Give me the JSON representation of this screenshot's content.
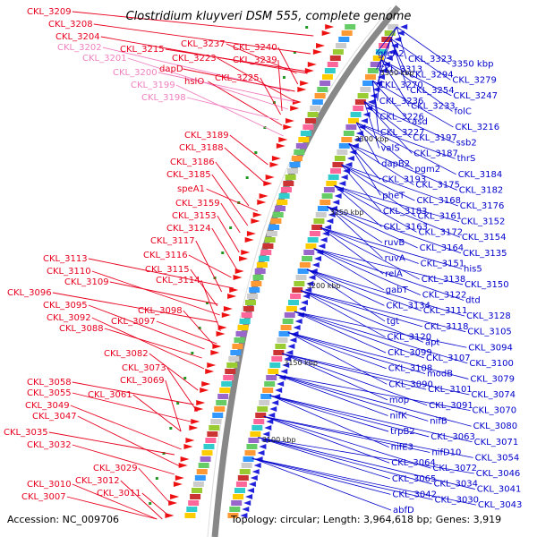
{
  "title": "Clostridium kluyveri DSM 555, complete genome",
  "footer": {
    "accession": "Accession: NC_009706",
    "topology": "Topology: circular; Length: 3,964,618 bp; Genes: 3,919"
  },
  "kbp_labels": [
    "3350 kbp",
    "3300 kbp",
    "3250 kbp",
    "3200 kbp",
    "3150 kbp",
    "3100 kbp"
  ],
  "colors": {
    "forward_label": "#e8001e",
    "forward_rna_label": "#f080c0",
    "reverse_label": "#0000cc",
    "backbone": "#888888"
  },
  "left_labels": [
    {
      "text": "CKL_3209",
      "color": "red"
    },
    {
      "text": "CKL_3208",
      "color": "red"
    },
    {
      "text": "CKL_3204",
      "color": "red"
    },
    {
      "text": "CKL_3202",
      "color": "pink"
    },
    {
      "text": "CKL_3201",
      "color": "pink"
    },
    {
      "text": "CKL_3215",
      "color": "red"
    },
    {
      "text": "CKL_3237",
      "color": "red"
    },
    {
      "text": "CKL_3240",
      "color": "red"
    },
    {
      "text": "CKL_3223",
      "color": "red"
    },
    {
      "text": "CKL_3239",
      "color": "red"
    },
    {
      "text": "dapD",
      "color": "red"
    },
    {
      "text": "CKL_3200",
      "color": "pink"
    },
    {
      "text": "CKL_3225",
      "color": "red"
    },
    {
      "text": "hslO",
      "color": "red"
    },
    {
      "text": "CKL_3199",
      "color": "pink"
    },
    {
      "text": "CKL_3198",
      "color": "pink"
    },
    {
      "text": "CKL_3189",
      "color": "red"
    },
    {
      "text": "CKL_3188",
      "color": "red"
    },
    {
      "text": "CKL_3186",
      "color": "red"
    },
    {
      "text": "CKL_3185",
      "color": "red"
    },
    {
      "text": "speA1",
      "color": "red"
    },
    {
      "text": "CKL_3159",
      "color": "red"
    },
    {
      "text": "CKL_3153",
      "color": "red"
    },
    {
      "text": "CKL_3124",
      "color": "red"
    },
    {
      "text": "CKL_3117",
      "color": "red"
    },
    {
      "text": "CKL_3116",
      "color": "red"
    },
    {
      "text": "CKL_3113",
      "color": "red"
    },
    {
      "text": "CKL_3115",
      "color": "red"
    },
    {
      "text": "CKL_3110",
      "color": "red"
    },
    {
      "text": "CKL_3114",
      "color": "red"
    },
    {
      "text": "CKL_3109",
      "color": "red"
    },
    {
      "text": "CKL_3096",
      "color": "red"
    },
    {
      "text": "CKL_3098",
      "color": "red"
    },
    {
      "text": "CKL_3095",
      "color": "red"
    },
    {
      "text": "CKL_3092",
      "color": "red"
    },
    {
      "text": "CKL_3097",
      "color": "red"
    },
    {
      "text": "CKL_3088",
      "color": "red"
    },
    {
      "text": "CKL_3082",
      "color": "red"
    },
    {
      "text": "CKL_3073",
      "color": "red"
    },
    {
      "text": "CKL_3069",
      "color": "red"
    },
    {
      "text": "CKL_3058",
      "color": "red"
    },
    {
      "text": "CKL_3055",
      "color": "red"
    },
    {
      "text": "CKL_3061",
      "color": "red"
    },
    {
      "text": "CKL_3049",
      "color": "red"
    },
    {
      "text": "CKL_3047",
      "color": "red"
    },
    {
      "text": "CKL_3035",
      "color": "red"
    },
    {
      "text": "CKL_3032",
      "color": "red"
    },
    {
      "text": "CKL_3029",
      "color": "red"
    },
    {
      "text": "CKL_3010",
      "color": "red"
    },
    {
      "text": "CKL_3012",
      "color": "red"
    },
    {
      "text": "CKL_3011",
      "color": "red"
    },
    {
      "text": "CKL_3007",
      "color": "red"
    }
  ],
  "right_labels": [
    "greA2",
    "CKL_3323",
    "3350 kbp",
    "CKL_3313",
    "CKL_3294",
    "CKL_3279",
    "CKL_3270",
    "CKL_3254",
    "CKL_3247",
    "CKL_3236",
    "CKL_3233",
    "folC",
    "CKL_3226",
    "asd",
    "CKL_3216",
    "CKL_3227",
    "CKL_3197",
    "ssb2",
    "valS",
    "CKL_3187",
    "thrS",
    "dapB2",
    "pgm2",
    "CKL_3184",
    "CKL_3193",
    "CKL_3175",
    "CKL_3182",
    "pheT",
    "CKL_3168",
    "CKL_3176",
    "CKL_3183",
    "CKL_3161",
    "CKL_3152",
    "CKL_3163",
    "CKL_3172",
    "CKL_3154",
    "ruvB",
    "CKL_3164",
    "CKL_3135",
    "ruvA",
    "CKL_3151",
    "his5",
    "relA",
    "CKL_3138",
    "CKL_3150",
    "gabT",
    "CKL_3122",
    "dtd",
    "CKL_3134",
    "CKL_3111",
    "CKL_3128",
    "tgt",
    "CKL_3118",
    "CKL_3105",
    "CKL_3120",
    "apt",
    "CKL_3094",
    "CKL_3099",
    "CKL_3107",
    "CKL_3100",
    "CKL_3108",
    "modB",
    "CKL_3079",
    "CKL_3090",
    "CKL_3101",
    "CKL_3074",
    "mop",
    "CKL_3091",
    "CKL_3070",
    "nifK",
    "nifB",
    "CKL_3080",
    "trpB2",
    "CKL_3063",
    "CKL_3071",
    "nifE3",
    "nifD10",
    "CKL_3054",
    "CKL_3064",
    "CKL_3072",
    "CKL_3046",
    "CKL_3065",
    "CKL_3034",
    "CKL_3041",
    "CKL_3042",
    "CKL_3030",
    "CKL_3043",
    "abfD"
  ]
}
